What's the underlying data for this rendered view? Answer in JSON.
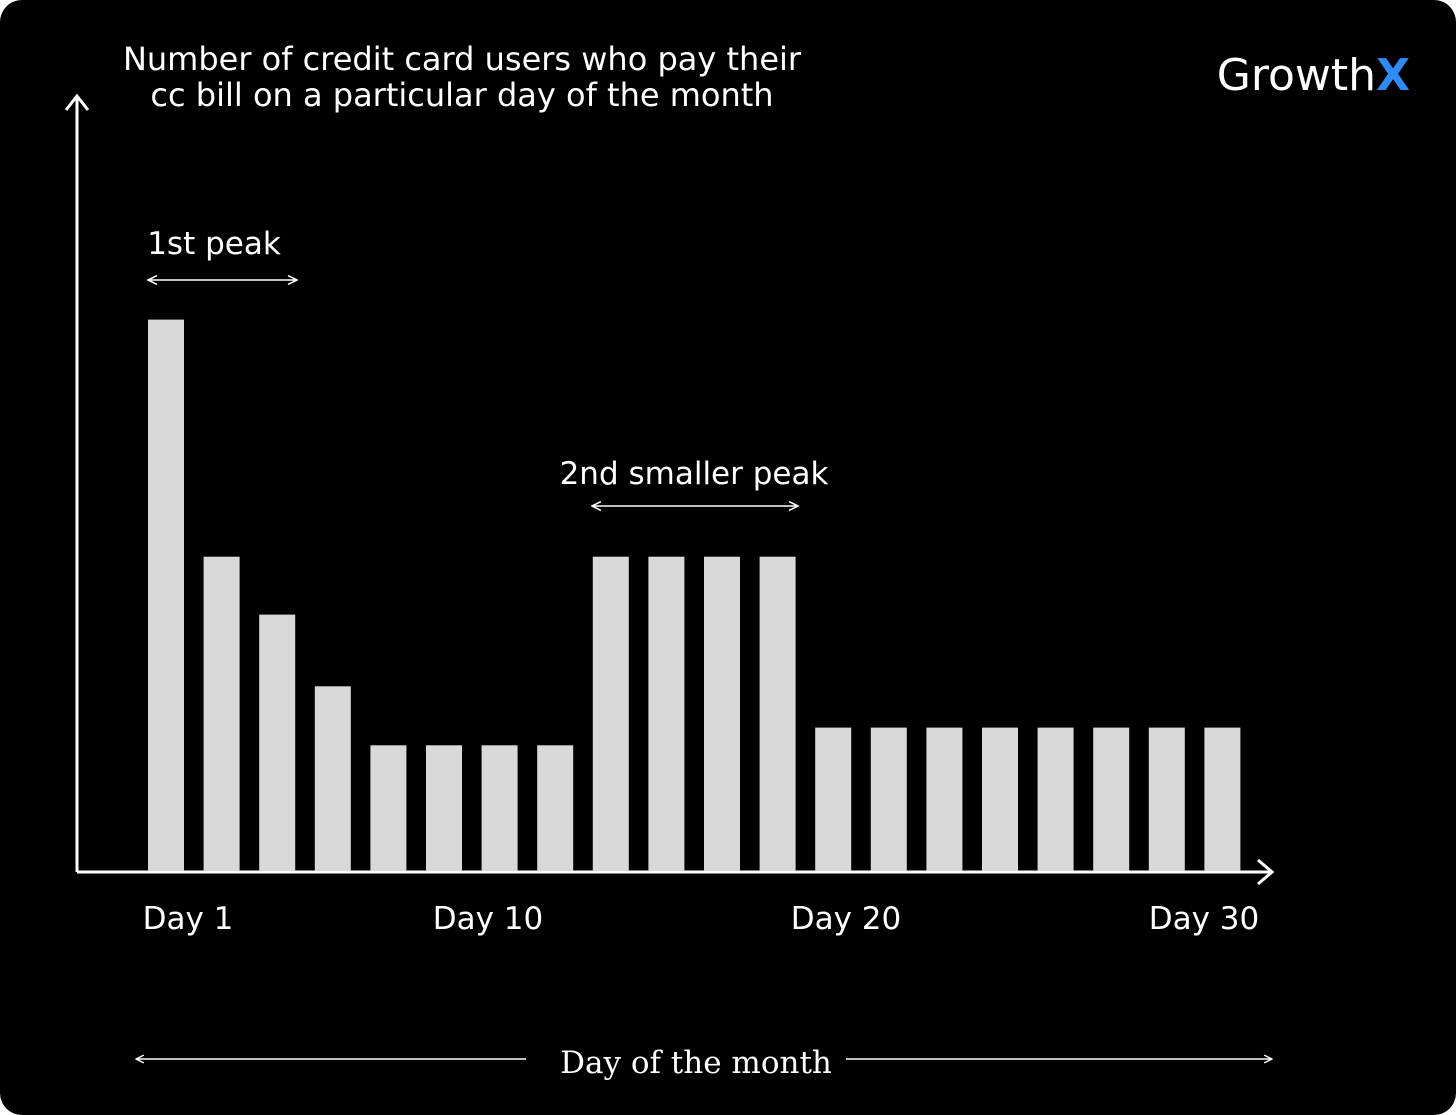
{
  "logo": {
    "text": "Growth",
    "mark": "X",
    "mark_color": "#2F8CF7",
    "text_color": "#FFFFFF"
  },
  "colors": {
    "background": "#000000",
    "bar": "#D9D9D9",
    "axis": "#FFFFFF"
  },
  "chart_data": {
    "type": "bar",
    "title": "Number of credit card users who pay their cc bill on a particular day of the month",
    "title_lines": [
      "Number of credit card users who pay their",
      "cc bill on a particular day of the month"
    ],
    "xlabel": "Day of the month",
    "ylabel": "",
    "tick_labels": [
      "Day 1",
      "Day 10",
      "Day 20",
      "Day 30"
    ],
    "values": [
      100,
      57,
      46.5,
      33.5,
      22.8,
      22.8,
      22.8,
      22.8,
      57,
      57,
      57,
      57,
      26,
      26,
      26,
      26,
      26,
      26,
      26,
      26
    ],
    "ylim": [
      0,
      105
    ],
    "grid": false,
    "annotations": [
      {
        "text": "1st peak",
        "from_bar": 1,
        "to_bar": 3
      },
      {
        "text": "2nd smaller peak",
        "from_bar": 9,
        "to_bar": 12
      }
    ]
  }
}
